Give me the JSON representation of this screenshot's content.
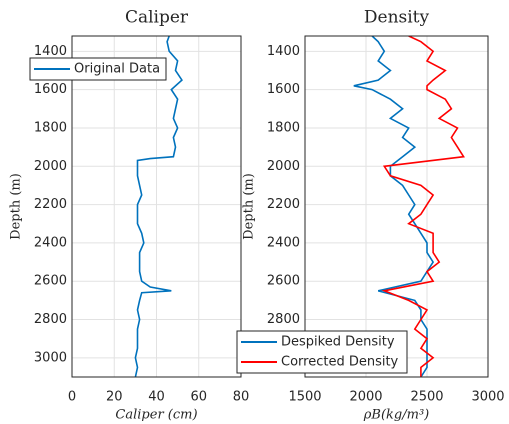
{
  "chart_data": [
    {
      "type": "line",
      "title": "Caliper",
      "xlabel": "Caliper (cm)",
      "ylabel": "Depth (m)",
      "xlim": [
        0,
        80
      ],
      "xticks": [
        0,
        20,
        40,
        60,
        80
      ],
      "ylim": [
        1320,
        3100
      ],
      "yticks": [
        1400,
        1600,
        1800,
        2000,
        2200,
        2400,
        2600,
        2800,
        3000
      ],
      "y_inverted": true,
      "grid": true,
      "legend": "northwest",
      "y": [
        1320,
        1350,
        1400,
        1450,
        1500,
        1550,
        1600,
        1650,
        1700,
        1750,
        1800,
        1850,
        1900,
        1950,
        1960,
        1970,
        2000,
        2050,
        2100,
        2150,
        2200,
        2250,
        2300,
        2350,
        2400,
        2450,
        2500,
        2550,
        2600,
        2630,
        2650,
        2660,
        2700,
        2750,
        2800,
        2850,
        2900,
        2950,
        3000,
        3050,
        3100
      ],
      "series": [
        {
          "name": "Original Data",
          "color": "#0072bd",
          "values": [
            46,
            45,
            46,
            50,
            49,
            52,
            47,
            50,
            49,
            48,
            50,
            48,
            49,
            48,
            37,
            31,
            31,
            31,
            32,
            33,
            31,
            31,
            31,
            33,
            34,
            32,
            32,
            32,
            33,
            37,
            47,
            33,
            32,
            31,
            32,
            31,
            31,
            31,
            30,
            31,
            30
          ]
        }
      ]
    },
    {
      "type": "line",
      "title": "Density",
      "xlabel": "ρB(kg/m³)",
      "ylabel": "Depth (m)",
      "xlim": [
        1500,
        3000
      ],
      "xticks": [
        1500,
        2000,
        2500,
        3000
      ],
      "ylim": [
        1320,
        3100
      ],
      "yticks": [
        1400,
        1600,
        1800,
        2000,
        2200,
        2400,
        2600,
        2800,
        3000
      ],
      "y_inverted": true,
      "grid": true,
      "legend": "southwest",
      "y": [
        1320,
        1350,
        1400,
        1450,
        1500,
        1550,
        1580,
        1600,
        1650,
        1700,
        1750,
        1800,
        1850,
        1900,
        1950,
        2000,
        2050,
        2100,
        2150,
        2200,
        2250,
        2300,
        2350,
        2400,
        2450,
        2500,
        2550,
        2600,
        2650,
        2700,
        2750,
        2800,
        2850,
        2900,
        2950,
        3000,
        3050,
        3100
      ],
      "series": [
        {
          "name": "Despiked Density",
          "color": "#0072bd",
          "values": [
            2050,
            2100,
            2150,
            2100,
            2200,
            2100,
            1900,
            2050,
            2200,
            2300,
            2200,
            2350,
            2300,
            2400,
            2300,
            2200,
            2200,
            2300,
            2350,
            2400,
            2350,
            2400,
            2450,
            2500,
            2500,
            2550,
            2500,
            2450,
            2100,
            2400,
            2450,
            2450,
            2500,
            2500,
            2500,
            2500,
            2500,
            2450
          ]
        },
        {
          "name": "Corrected Density",
          "color": "#ff0000",
          "values": [
            2350,
            2450,
            2550,
            2500,
            2650,
            2550,
            2500,
            2500,
            2650,
            2700,
            2600,
            2750,
            2700,
            2750,
            2800,
            2150,
            2200,
            2450,
            2550,
            2500,
            2450,
            2350,
            2550,
            2550,
            2550,
            2600,
            2500,
            2550,
            2150,
            2350,
            2500,
            2450,
            2400,
            2500,
            2450,
            2550,
            2450,
            2450
          ]
        }
      ]
    }
  ]
}
